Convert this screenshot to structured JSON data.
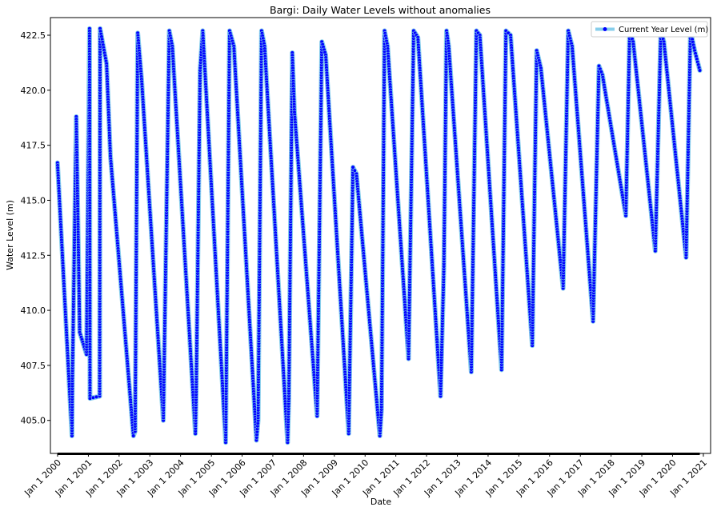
{
  "chart_data": {
    "type": "line",
    "title": "Bargi: Daily Water Levels without anomalies",
    "xlabel": "Date",
    "ylabel": "Water Level (m)",
    "ylim": [
      403.5,
      423.3
    ],
    "xlim": [
      "1999-10-08",
      "2021-03-28"
    ],
    "y_ticks": [
      405.0,
      407.5,
      410.0,
      412.5,
      415.0,
      417.5,
      420.0,
      422.5
    ],
    "y_tick_labels": [
      "405.0",
      "407.5",
      "410.0",
      "412.5",
      "415.0",
      "417.5",
      "420.0",
      "422.5"
    ],
    "x_ticks": [
      "2000-01-01",
      "2001-01-01",
      "2002-01-01",
      "2003-01-01",
      "2004-01-01",
      "2005-01-01",
      "2006-01-01",
      "2007-01-01",
      "2008-01-01",
      "2009-01-01",
      "2010-01-01",
      "2011-01-01",
      "2012-01-01",
      "2013-01-01",
      "2014-01-01",
      "2015-01-01",
      "2016-01-01",
      "2017-01-01",
      "2018-01-01",
      "2019-01-01",
      "2020-01-01",
      "2021-01-01"
    ],
    "x_tick_labels": [
      "Jan 1 2000",
      "Jan 1 2001",
      "Jan 1 2002",
      "Jan 1 2003",
      "Jan 1 2004",
      "Jan 1 2005",
      "Jan 1 2006",
      "Jan 1 2007",
      "Jan 1 2008",
      "Jan 1 2009",
      "Jan 1 2010",
      "Jan 1 2011",
      "Jan 1 2012",
      "Jan 1 2013",
      "Jan 1 2014",
      "Jan 1 2015",
      "Jan 1 2016",
      "Jan 1 2017",
      "Jan 1 2018",
      "Jan 1 2019",
      "Jan 1 2020",
      "Jan 1 2021"
    ],
    "grid": false,
    "legend_position": "top-right",
    "series": [
      {
        "name": "Current Year Level (m)",
        "line_color": "#87ceeb",
        "marker_color": "#0000ff",
        "marker_edge_color": "#87ceeb",
        "x": [
          "1999-12-31",
          "2000-06-20",
          "2000-06-25",
          "2000-08-10",
          "2000-09-20",
          "2000-12-10",
          "2001-01-15",
          "2001-01-20",
          "2001-05-15",
          "2001-05-20",
          "2001-08-05",
          "2001-09-20",
          "2002-06-20",
          "2002-07-10",
          "2002-08-10",
          "2002-09-25",
          "2003-06-10",
          "2003-08-20",
          "2003-09-25",
          "2004-06-25",
          "2004-07-05",
          "2004-08-20",
          "2004-09-20",
          "2005-06-20",
          "2005-08-05",
          "2005-09-25",
          "2006-06-20",
          "2006-07-10",
          "2006-08-20",
          "2006-09-25",
          "2007-06-25",
          "2007-07-10",
          "2007-08-20",
          "2007-09-15",
          "2008-06-10",
          "2008-08-05",
          "2008-09-20",
          "2009-06-20",
          "2009-08-10",
          "2009-09-20",
          "2010-06-25",
          "2010-07-15",
          "2010-08-20",
          "2010-09-25",
          "2011-06-01",
          "2011-08-01",
          "2011-09-20",
          "2012-06-15",
          "2012-07-25",
          "2012-08-25",
          "2012-09-20",
          "2013-06-15",
          "2013-08-15",
          "2013-09-25",
          "2014-06-10",
          "2014-08-01",
          "2014-09-25",
          "2015-06-10",
          "2015-08-01",
          "2015-09-20",
          "2016-06-10",
          "2016-08-10",
          "2016-09-25",
          "2017-06-01",
          "2017-08-10",
          "2017-09-20",
          "2018-06-25",
          "2018-08-10",
          "2018-09-20",
          "2019-06-10",
          "2019-08-15",
          "2019-09-20",
          "2020-06-10",
          "2020-08-01",
          "2020-09-20",
          "2020-11-20"
        ],
        "y": [
          416.7,
          404.3,
          406.8,
          418.8,
          409.0,
          408.0,
          422.8,
          406.0,
          406.1,
          422.8,
          421.2,
          417.0,
          404.3,
          404.5,
          422.6,
          420.5,
          405.0,
          422.7,
          422.0,
          404.4,
          406.3,
          420.9,
          422.7,
          404.0,
          422.7,
          422.0,
          404.1,
          405.0,
          422.7,
          422.0,
          404.0,
          406.0,
          421.7,
          419.0,
          405.2,
          422.2,
          421.6,
          404.4,
          416.5,
          416.2,
          404.3,
          405.5,
          422.7,
          422.0,
          407.8,
          422.7,
          422.4,
          406.1,
          412.0,
          422.7,
          422.0,
          407.2,
          422.7,
          422.5,
          407.3,
          422.7,
          422.5,
          408.4,
          421.8,
          421.0,
          411.0,
          422.7,
          422.0,
          409.5,
          421.1,
          420.7,
          414.3,
          422.7,
          422.2,
          412.7,
          422.7,
          422.2,
          412.4,
          422.7,
          421.8,
          420.9
        ]
      }
    ]
  }
}
